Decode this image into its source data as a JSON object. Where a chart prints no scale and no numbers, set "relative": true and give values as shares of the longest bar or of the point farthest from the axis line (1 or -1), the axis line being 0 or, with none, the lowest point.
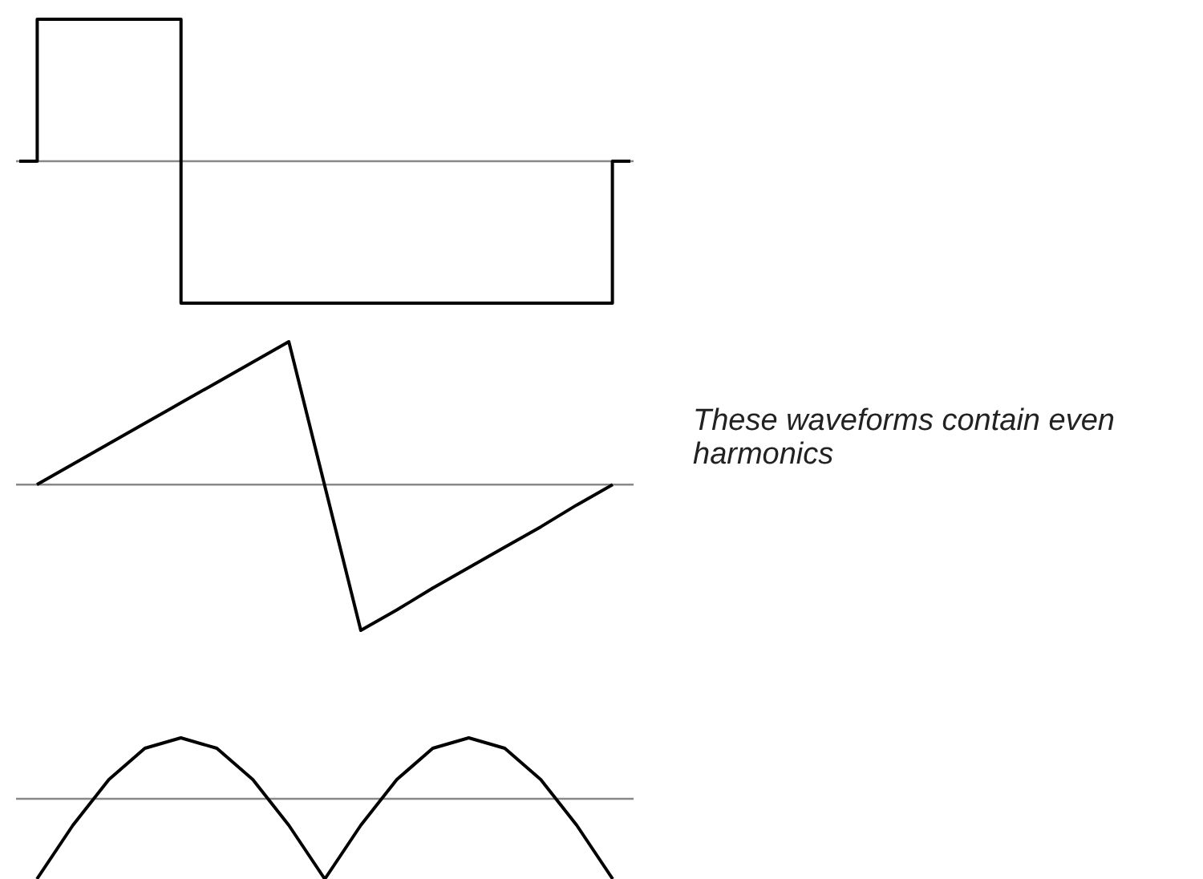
{
  "chart_data": [
    {
      "type": "step",
      "relative": true,
      "marker": "none",
      "color": "#000000",
      "categories": [
        null,
        null,
        null,
        null,
        null,
        null,
        null,
        null,
        null,
        null,
        null,
        null,
        null,
        null,
        null,
        null,
        null,
        null
      ],
      "values": [
        0,
        1,
        1,
        1,
        1,
        -1,
        -1,
        -1,
        -1,
        -1,
        -1,
        -1,
        -1,
        -1,
        -1,
        -1,
        -1,
        0
      ]
    },
    {
      "type": "line",
      "relative": true,
      "marker": "none",
      "color": "#000000",
      "categories": [
        null,
        null,
        null,
        null,
        null,
        null,
        null,
        null,
        null,
        null,
        null,
        null,
        null,
        null,
        null,
        null,
        null
      ],
      "values": [
        0,
        0.14,
        0.28,
        0.42,
        0.56,
        0.7,
        0.84,
        0.98,
        -0.01,
        -1,
        -0.86,
        -0.71,
        -0.57,
        -0.43,
        -0.29,
        -0.14,
        0
      ],
      "annotations": [
        "These waveforms contain even harmonics"
      ]
    },
    {
      "type": "line",
      "relative": true,
      "marker": "none",
      "color": "#000000",
      "categories": [
        null,
        null,
        null,
        null,
        null,
        null,
        null,
        null,
        null,
        null,
        null,
        null,
        null,
        null,
        null,
        null,
        null
      ],
      "values": [
        -1,
        -0.33,
        0.24,
        0.63,
        0.76,
        0.63,
        0.24,
        -0.33,
        -1,
        -0.33,
        0.24,
        0.63,
        0.76,
        0.63,
        0.24,
        -0.33,
        -1
      ]
    }
  ]
}
